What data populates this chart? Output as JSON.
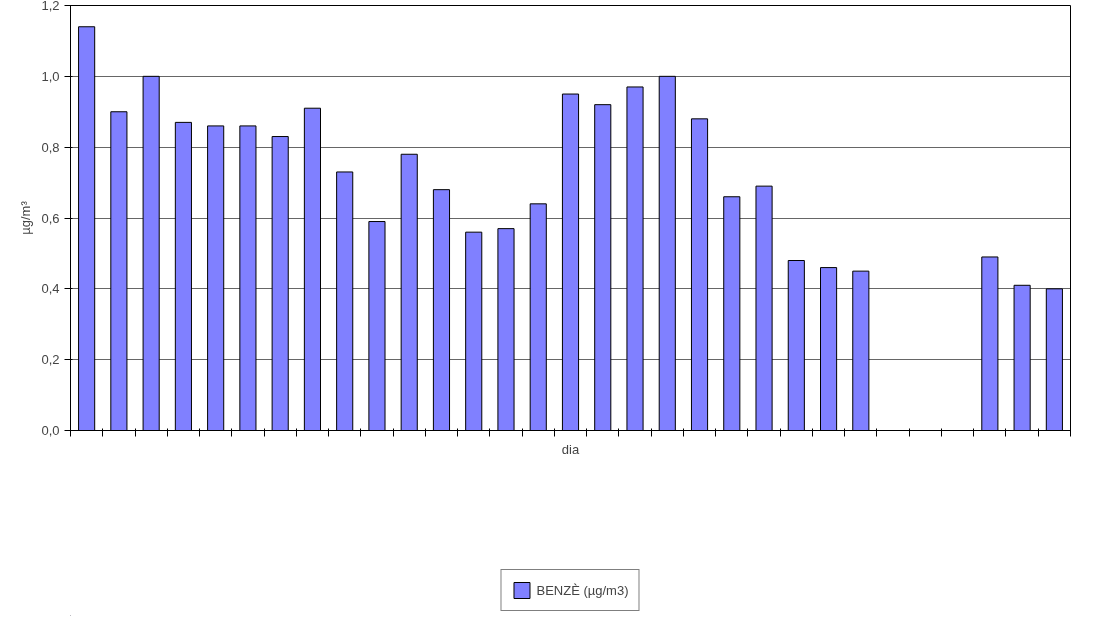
{
  "chart_data": {
    "type": "bar",
    "xlabel": "dia",
    "ylabel": "µg/m³",
    "categories": [
      null,
      null,
      null,
      null,
      null,
      null,
      null,
      null,
      null,
      null,
      null,
      null,
      null,
      null,
      null,
      null,
      null,
      null,
      null,
      null,
      null,
      null,
      null,
      null,
      null,
      null,
      null,
      null,
      null,
      null,
      null
    ],
    "series": [
      {
        "name": "BENZÈ (µg/m3)",
        "color": "#8080ff",
        "values": [
          1.14,
          0.9,
          1.0,
          0.87,
          0.86,
          0.86,
          0.83,
          0.91,
          0.73,
          0.59,
          0.78,
          0.68,
          0.56,
          0.57,
          0.64,
          0.95,
          0.92,
          0.97,
          1.0,
          0.88,
          0.66,
          0.69,
          0.48,
          0.46,
          0.45,
          null,
          null,
          null,
          0.49,
          0.41,
          0.4
        ]
      }
    ],
    "ylim": [
      0,
      1.2
    ],
    "yticks": [
      {
        "value": 0,
        "label": "0,0"
      },
      {
        "value": 0.2,
        "label": "0,2"
      },
      {
        "value": 0.4,
        "label": "0,4"
      },
      {
        "value": 0.6,
        "label": "0,6"
      },
      {
        "value": 0.8,
        "label": "0,8"
      },
      {
        "value": 1.0,
        "label": "1,0"
      },
      {
        "value": 1.2,
        "label": "1,2"
      }
    ],
    "grid": "y",
    "legend": "bottom"
  }
}
